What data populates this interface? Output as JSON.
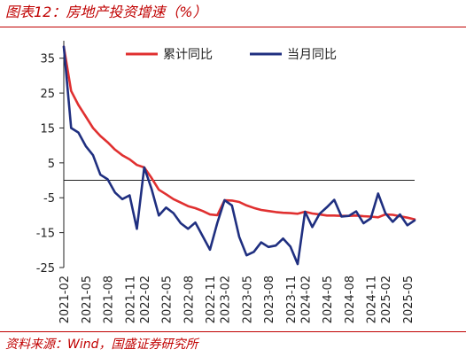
{
  "header": {
    "title": "图表12：房地产投资增速（%）"
  },
  "footer": {
    "source": "资料来源：Wind，国盛证券研究所"
  },
  "colors": {
    "accent": "#c00000",
    "cumulative": "#e03030",
    "monthly": "#1f2f80",
    "axis": "#222222"
  },
  "chart_data": {
    "type": "line",
    "title": "房地产投资增速（%）",
    "xlabel": "",
    "ylabel": "",
    "ylim": [
      -25,
      40
    ],
    "yticks": [
      35,
      25,
      15,
      5,
      -5,
      -15,
      -25
    ],
    "x": [
      "2021-02",
      "2021-03",
      "2021-04",
      "2021-05",
      "2021-06",
      "2021-07",
      "2021-08",
      "2021-09",
      "2021-10",
      "2021-11",
      "2021-12",
      "2022-02",
      "2022-03",
      "2022-04",
      "2022-05",
      "2022-06",
      "2022-07",
      "2022-08",
      "2022-09",
      "2022-10",
      "2022-11",
      "2022-12",
      "2023-02",
      "2023-03",
      "2023-04",
      "2023-05",
      "2023-06",
      "2023-07",
      "2023-08",
      "2023-09",
      "2023-10",
      "2023-11",
      "2023-12",
      "2024-02",
      "2024-03",
      "2024-04",
      "2024-05",
      "2024-06",
      "2024-07",
      "2024-08",
      "2024-09",
      "2024-10",
      "2024-11",
      "2024-12",
      "2025-02",
      "2025-03",
      "2025-04",
      "2025-05",
      "2025-06"
    ],
    "xtick_labels": [
      "2021-02",
      "2021-05",
      "2021-08",
      "2021-11",
      "2022-02",
      "2022-05",
      "2022-08",
      "2022-11",
      "2023-02",
      "2023-05",
      "2023-08",
      "2023-11",
      "2024-02",
      "2024-05",
      "2024-08",
      "2024-11",
      "2025-02",
      "2025-05"
    ],
    "series": [
      {
        "name": "累计同比",
        "values": [
          38.3,
          25.6,
          21.6,
          18.3,
          15.0,
          12.7,
          10.9,
          8.8,
          7.2,
          6.0,
          4.4,
          3.7,
          0.7,
          -2.7,
          -4.0,
          -5.4,
          -6.4,
          -7.4,
          -8.0,
          -8.8,
          -9.8,
          -10.0,
          -5.7,
          -5.8,
          -6.2,
          -7.2,
          -7.9,
          -8.5,
          -8.8,
          -9.1,
          -9.3,
          -9.4,
          -9.6,
          -9.0,
          -9.5,
          -9.8,
          -10.1,
          -10.1,
          -10.2,
          -10.2,
          -10.1,
          -10.3,
          -10.4,
          -10.6,
          -9.8,
          -9.9,
          -10.3,
          -10.7,
          -11.2
        ]
      },
      {
        "name": "当月同比",
        "values": [
          38.3,
          15.0,
          13.7,
          9.8,
          7.2,
          1.6,
          0.3,
          -3.5,
          -5.4,
          -4.3,
          -13.9,
          3.7,
          -2.4,
          -10.1,
          -7.8,
          -9.4,
          -12.3,
          -13.9,
          -12.1,
          -16.0,
          -19.9,
          -12.2,
          -5.7,
          -7.2,
          -16.2,
          -21.5,
          -20.5,
          -17.8,
          -19.1,
          -18.7,
          -16.7,
          -19.0,
          -24.0,
          -9.0,
          -13.4,
          -9.6,
          -7.7,
          -5.6,
          -10.4,
          -10.2,
          -8.9,
          -12.3,
          -10.9,
          -3.8,
          -9.4,
          -11.9,
          -9.8,
          -12.9,
          -11.5
        ]
      }
    ],
    "legend": "top-right",
    "grid": false
  }
}
